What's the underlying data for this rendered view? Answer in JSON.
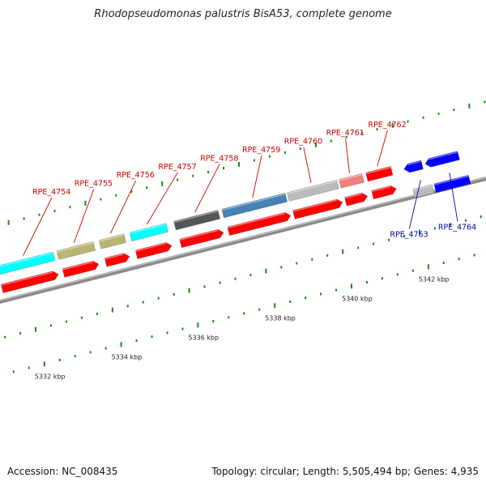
{
  "title": "Rhodopseudomonas palustris BisA53, complete genome",
  "footer": {
    "accession": "Accession: NC_008435",
    "summary": "Topology: circular; Length: 5,505,494 bp; Genes: 4,935"
  },
  "colors": {
    "axis": "#8a8a8a",
    "tick": "#1a8a1a",
    "label_forward": "#cc0000",
    "label_reverse": "#0000aa",
    "cds_forward": "#ff0000",
    "cds_reverse": "#0000ff"
  },
  "ticks": [
    {
      "kbp": 5332,
      "label": "5332 kbp"
    },
    {
      "kbp": 5334,
      "label": "5334 kbp"
    },
    {
      "kbp": 5336,
      "label": "5336 kbp"
    },
    {
      "kbp": 5338,
      "label": "5338 kbp"
    },
    {
      "kbp": 5340,
      "label": "5340 kbp"
    },
    {
      "kbp": 5342,
      "label": "5342 kbp"
    }
  ],
  "genes": [
    {
      "label": "RPE_4754",
      "start": 5331.4,
      "end": 5332.9,
      "strand": "+",
      "color": "#00ffff"
    },
    {
      "label": "RPE_4755",
      "start": 5333.0,
      "end": 5333.95,
      "strand": "+",
      "color": "#b9b472"
    },
    {
      "label": "RPE_4756",
      "start": 5334.1,
      "end": 5334.75,
      "strand": "+",
      "color": "#b9b472"
    },
    {
      "label": "RPE_4757",
      "start": 5334.9,
      "end": 5335.85,
      "strand": "+",
      "color": "#00ffff"
    },
    {
      "label": "RPE_4758",
      "start": 5336.05,
      "end": 5337.2,
      "strand": "+",
      "color": "#555555"
    },
    {
      "label": "RPE_4759",
      "start": 5337.3,
      "end": 5338.95,
      "strand": "+",
      "color": "#4682b4"
    },
    {
      "label": "RPE_4760",
      "start": 5339.0,
      "end": 5340.3,
      "strand": "+",
      "color": "#bbbbbb"
    },
    {
      "label": "RPE_4761",
      "start": 5340.35,
      "end": 5340.95,
      "strand": "+",
      "color": "#f08080"
    },
    {
      "label": "RPE_4762",
      "start": 5341.05,
      "end": 5341.7,
      "strand": "+",
      "color": "#ff0000"
    },
    {
      "label": "RPE_4763",
      "start": 5342.1,
      "end": 5342.6,
      "strand": "-",
      "color": "#bbbbbb"
    },
    {
      "label": "RPE_4764",
      "start": 5342.65,
      "end": 5343.55,
      "strand": "-",
      "color": "#0000ff"
    }
  ]
}
